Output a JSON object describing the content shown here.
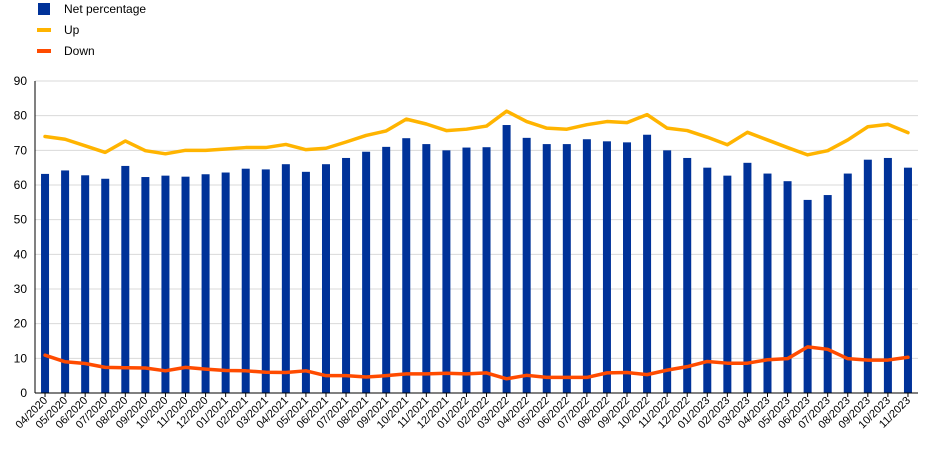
{
  "chart_data": {
    "type": "bar",
    "title": "",
    "xlabel": "",
    "ylabel": "",
    "ylim": [
      0,
      90
    ],
    "yticks": [
      0,
      10,
      20,
      30,
      40,
      50,
      60,
      70,
      80,
      90
    ],
    "grid": true,
    "legend_position": "top-left",
    "categories": [
      "04/2020",
      "05/2020",
      "06/2020",
      "07/2020",
      "08/2020",
      "09/2020",
      "10/2020",
      "11/2020",
      "12/2020",
      "01/2021",
      "02/2021",
      "03/2021",
      "04/2021",
      "05/2021",
      "06/2021",
      "07/2021",
      "08/2021",
      "09/2021",
      "10/2021",
      "11/2021",
      "12/2021",
      "01/2022",
      "02/2022",
      "03/2022",
      "04/2022",
      "05/2022",
      "06/2022",
      "07/2022",
      "08/2022",
      "09/2022",
      "10/2022",
      "11/2022",
      "12/2022",
      "01/2023",
      "02/2023",
      "03/2023",
      "04/2023",
      "05/2023",
      "06/2023",
      "07/2023",
      "08/2023",
      "09/2023",
      "10/2023",
      "11/2023"
    ],
    "series": [
      {
        "name": "Net percentage",
        "kind": "bar",
        "color": "#003299",
        "values": [
          63.2,
          64.2,
          62.8,
          61.8,
          65.5,
          62.3,
          62.7,
          62.4,
          63.1,
          63.6,
          64.7,
          64.5,
          66.0,
          63.8,
          66.0,
          67.8,
          69.6,
          71.0,
          73.5,
          71.8,
          70.0,
          70.8,
          70.9,
          77.3,
          73.6,
          71.8,
          71.8,
          73.2,
          72.6,
          72.3,
          74.5,
          70.0,
          67.8,
          65.0,
          62.7,
          66.4,
          63.3,
          61.1,
          55.7,
          57.1,
          63.3,
          67.3,
          67.8,
          65.0
        ]
      },
      {
        "name": "Up",
        "kind": "line",
        "color": "#FFB400",
        "values": [
          74.0,
          73.2,
          71.3,
          69.4,
          72.7,
          69.9,
          69.0,
          70.0,
          70.0,
          70.4,
          70.8,
          70.8,
          71.7,
          70.2,
          70.6,
          72.4,
          74.3,
          75.6,
          79.0,
          77.6,
          75.7,
          76.1,
          77.0,
          81.3,
          78.3,
          76.4,
          76.1,
          77.4,
          78.3,
          78.0,
          80.3,
          76.4,
          75.7,
          73.8,
          71.6,
          75.2,
          73.0,
          70.8,
          68.7,
          69.9,
          73.0,
          76.8,
          77.5,
          75.1
        ]
      },
      {
        "name": "Down",
        "kind": "line",
        "color": "#FF4B00",
        "values": [
          10.9,
          9.0,
          8.5,
          7.4,
          7.3,
          7.2,
          6.4,
          7.4,
          6.9,
          6.5,
          6.4,
          6.0,
          5.9,
          6.4,
          5.0,
          5.0,
          4.6,
          5.0,
          5.5,
          5.5,
          5.7,
          5.5,
          5.8,
          4.1,
          5.1,
          4.5,
          4.5,
          4.5,
          5.8,
          5.9,
          5.3,
          6.6,
          7.6,
          9.1,
          8.6,
          8.6,
          9.6,
          9.9,
          13.3,
          12.6,
          9.9,
          9.5,
          9.5,
          10.3
        ]
      }
    ]
  }
}
